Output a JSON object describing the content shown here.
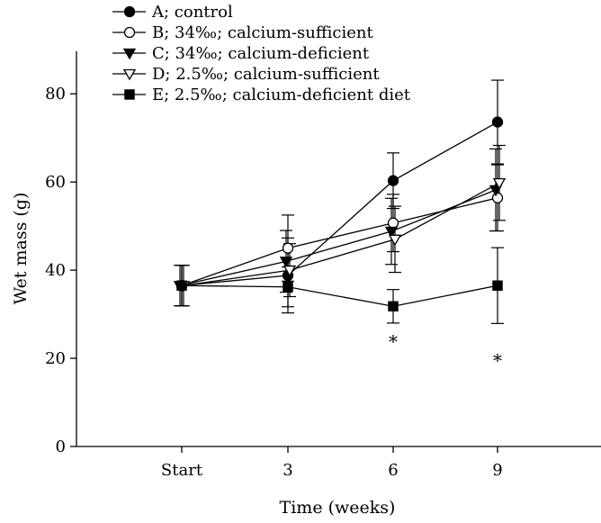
{
  "chart_data": {
    "type": "line",
    "xlabel": "Time (weeks)",
    "ylabel": "Wet mass (g)",
    "categories": [
      "Start",
      "3",
      "6",
      "9"
    ],
    "ylim": [
      0,
      90
    ],
    "yticks": [
      0,
      20,
      40,
      60,
      80
    ],
    "grid": false,
    "legend_position": "top-left",
    "series": [
      {
        "name": "A; control",
        "marker": "filled-circle",
        "values": [
          36.5,
          38.8,
          60.3,
          73.6
        ],
        "errors": [
          4.6,
          8.5,
          6.3,
          9.5
        ]
      },
      {
        "name": "B; 34‰; calcium-sufficient",
        "marker": "open-circle",
        "values": [
          36.5,
          45.0,
          50.7,
          56.4
        ],
        "errors": [
          4.6,
          7.5,
          6.5,
          7.5
        ]
      },
      {
        "name": "C; 34‰; calcium-deficient",
        "marker": "filled-triangle-down",
        "values": [
          36.5,
          42.0,
          48.8,
          58.2
        ],
        "errors": [
          4.6,
          7.0,
          7.5,
          9.3
        ]
      },
      {
        "name": "D; 2.5‰; calcium-sufficient",
        "marker": "open-triangle-down",
        "values": [
          36.5,
          40.0,
          47.0,
          59.8
        ],
        "errors": [
          4.6,
          6.0,
          7.5,
          8.5
        ]
      },
      {
        "name": "E; 2.5‰; calcium-deficient diet",
        "marker": "filled-square",
        "values": [
          36.5,
          36.2,
          31.8,
          36.5
        ],
        "errors": [
          4.6,
          4.5,
          3.8,
          8.6
        ]
      }
    ],
    "annotations": [
      {
        "text": "*",
        "category": "6",
        "value": 24.8
      },
      {
        "text": "*",
        "category": "9",
        "value": 20.5
      }
    ]
  }
}
